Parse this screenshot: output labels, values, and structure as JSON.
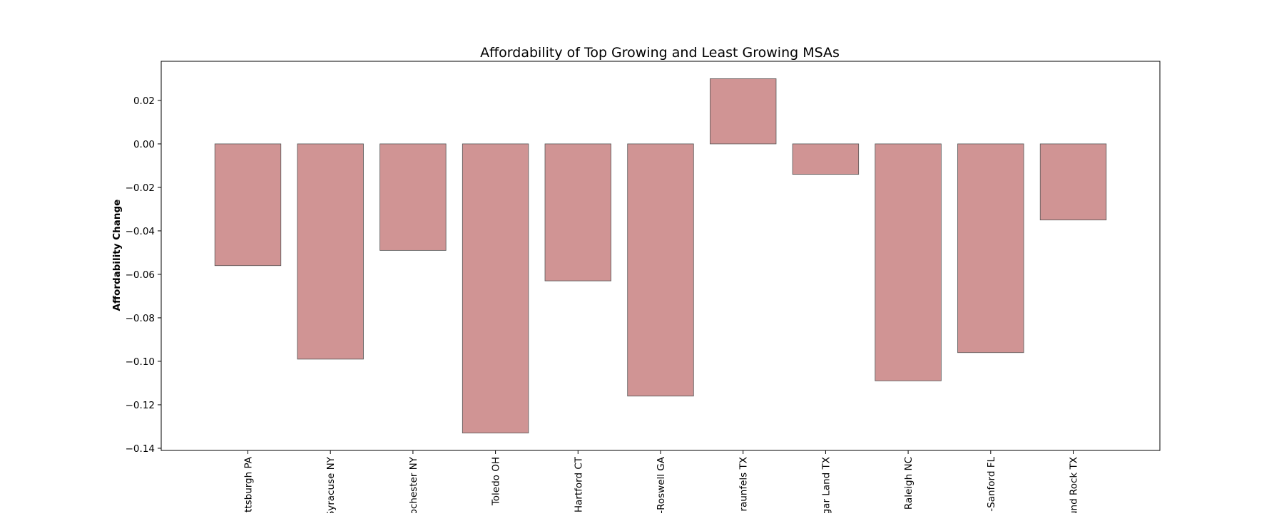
{
  "chart_data": {
    "type": "bar",
    "title": "Affordability of Top Growing and Least Growing MSAs",
    "xlabel": "",
    "ylabel": "Affordability Change",
    "categories": [
      "ttsburgh PA",
      "Syracuse NY",
      "ochester NY",
      "Toledo OH",
      "Hartford CT",
      "-Roswell GA",
      "raunfels TX",
      "gar Land TX",
      "Raleigh NC",
      "-Sanford FL",
      "und Rock TX"
    ],
    "values": [
      -0.056,
      -0.099,
      -0.049,
      -0.133,
      -0.063,
      -0.116,
      0.03,
      -0.014,
      -0.109,
      -0.096,
      -0.035
    ],
    "ylim": [
      -0.141,
      0.038
    ],
    "yticks": [
      0.02,
      0.0,
      -0.02,
      -0.04,
      -0.06,
      -0.08,
      -0.1,
      -0.12,
      -0.14
    ],
    "ytick_labels": [
      "0.02",
      "0.00",
      "−0.02",
      "−0.04",
      "−0.06",
      "−0.08",
      "−0.10",
      "−0.12",
      "−0.14"
    ],
    "bar_color": "#d09494",
    "bar_edge_color": "#555555",
    "grid": false,
    "legend": "none"
  }
}
